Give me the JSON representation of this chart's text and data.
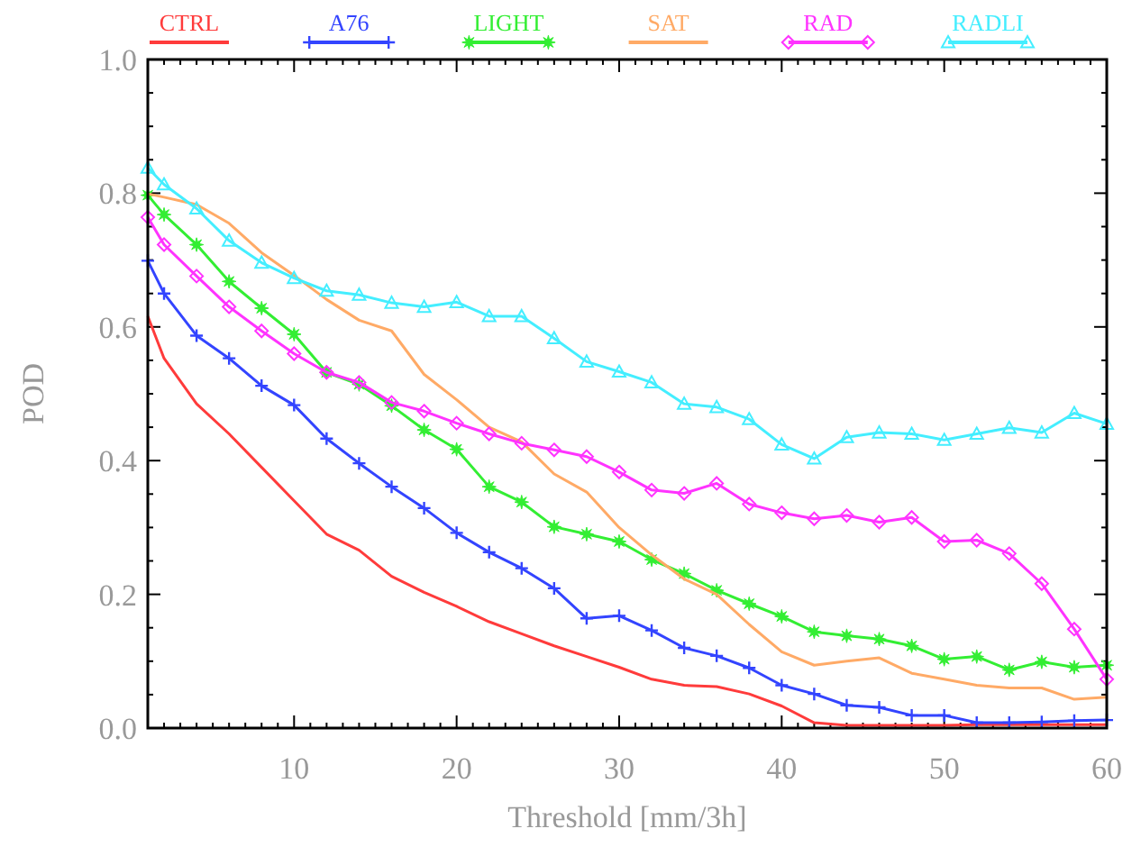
{
  "chart_data": {
    "type": "line",
    "xlabel": "Threshold [mm/3h]",
    "ylabel": "POD",
    "legend": "top",
    "grid": false,
    "x": [
      1,
      2,
      4,
      6,
      8,
      10,
      12,
      14,
      16,
      18,
      20,
      22,
      24,
      26,
      28,
      30,
      32,
      34,
      36,
      38,
      40,
      42,
      44,
      46,
      48,
      50,
      52,
      54,
      56,
      58,
      60
    ],
    "xlim": [
      1,
      60
    ],
    "xticks": [
      10,
      20,
      30,
      40,
      50,
      60
    ],
    "ylim": [
      0,
      1
    ],
    "yticks": [
      {
        "value": 0,
        "label": "0.0"
      },
      {
        "value": 0.2,
        "label": "0.2"
      },
      {
        "value": 0.4,
        "label": "0.4"
      },
      {
        "value": 0.6,
        "label": "0.6"
      },
      {
        "value": 0.8,
        "label": "0.8"
      },
      {
        "value": 1,
        "label": "1.0"
      }
    ],
    "series": [
      {
        "name": "CTRL",
        "color": "#ff3b3b",
        "marker": "none",
        "values": [
          0.616,
          0.553,
          0.485,
          0.44,
          0.39,
          0.34,
          0.29,
          0.266,
          0.227,
          0.203,
          0.182,
          0.159,
          0.141,
          0.123,
          0.107,
          0.091,
          0.073,
          0.064,
          0.062,
          0.051,
          0.033,
          0.008,
          0.004,
          0.004,
          0.004,
          0.004,
          0.005,
          0.005,
          0.005,
          0.005,
          0.005
        ]
      },
      {
        "name": "A76",
        "color": "#3344ff",
        "marker": "cross",
        "values": [
          0.699,
          0.65,
          0.587,
          0.553,
          0.512,
          0.483,
          0.433,
          0.396,
          0.361,
          0.329,
          0.292,
          0.263,
          0.239,
          0.209,
          0.164,
          0.168,
          0.146,
          0.12,
          0.108,
          0.09,
          0.064,
          0.051,
          0.034,
          0.031,
          0.019,
          0.019,
          0.008,
          0.008,
          0.009,
          0.011,
          0.012
        ]
      },
      {
        "name": "LIGHT",
        "color": "#33ee33",
        "marker": "star",
        "values": [
          0.797,
          0.768,
          0.723,
          0.668,
          0.628,
          0.589,
          0.532,
          0.514,
          0.482,
          0.446,
          0.417,
          0.361,
          0.338,
          0.301,
          0.29,
          0.279,
          0.252,
          0.231,
          0.206,
          0.186,
          0.167,
          0.144,
          0.138,
          0.133,
          0.123,
          0.103,
          0.107,
          0.087,
          0.099,
          0.091,
          0.094
        ]
      },
      {
        "name": "SAT",
        "color": "#ffaa66",
        "marker": "none",
        "values": [
          0.799,
          0.794,
          0.783,
          0.755,
          0.711,
          0.677,
          0.641,
          0.61,
          0.594,
          0.529,
          0.491,
          0.45,
          0.428,
          0.38,
          0.353,
          0.3,
          0.259,
          0.223,
          0.2,
          0.155,
          0.114,
          0.094,
          0.1,
          0.105,
          0.082,
          0.073,
          0.064,
          0.06,
          0.06,
          0.043,
          0.046
        ]
      },
      {
        "name": "RAD",
        "color": "#ff33ff",
        "marker": "diamond",
        "values": [
          0.764,
          0.723,
          0.676,
          0.63,
          0.594,
          0.56,
          0.532,
          0.517,
          0.487,
          0.474,
          0.456,
          0.44,
          0.426,
          0.416,
          0.406,
          0.383,
          0.356,
          0.351,
          0.366,
          0.335,
          0.322,
          0.313,
          0.318,
          0.308,
          0.315,
          0.279,
          0.281,
          0.261,
          0.216,
          0.148,
          0.073
        ]
      },
      {
        "name": "RADLI",
        "color": "#44eeff",
        "marker": "triangle",
        "values": [
          0.838,
          0.813,
          0.777,
          0.729,
          0.696,
          0.673,
          0.654,
          0.648,
          0.636,
          0.63,
          0.637,
          0.616,
          0.616,
          0.583,
          0.548,
          0.533,
          0.517,
          0.485,
          0.48,
          0.462,
          0.424,
          0.403,
          0.435,
          0.442,
          0.44,
          0.431,
          0.44,
          0.449,
          0.442,
          0.471,
          0.455
        ]
      }
    ]
  }
}
